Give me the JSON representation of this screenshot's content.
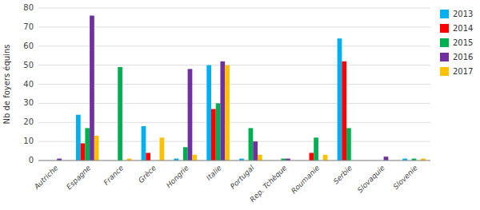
{
  "chart_data": {
    "type": "bar",
    "ylabel": "Nb de foyers équins",
    "categories": [
      "Autriche",
      "Espagne",
      "France",
      "Grèce",
      "Hongrie",
      "Italie",
      "Portugal",
      "Rep. Tchèque",
      "Roumanie",
      "Serbie",
      "Slovaquie",
      "Slovenie"
    ],
    "series": [
      {
        "name": "2013",
        "color": "#00B0F0",
        "values": [
          0,
          24,
          0,
          18,
          1,
          50,
          1,
          0,
          0,
          64,
          0,
          1
        ]
      },
      {
        "name": "2014",
        "color": "#FF0000",
        "values": [
          0,
          9,
          0,
          4,
          0,
          27,
          0,
          0,
          4,
          52,
          0,
          0
        ]
      },
      {
        "name": "2015",
        "color": "#00B050",
        "values": [
          0,
          17,
          49,
          0,
          7,
          30,
          17,
          1,
          12,
          17,
          0,
          1
        ]
      },
      {
        "name": "2016",
        "color": "#7030A0",
        "values": [
          1,
          76,
          0,
          0,
          48,
          52,
          10,
          1,
          0,
          0,
          2,
          0
        ]
      },
      {
        "name": "2017",
        "color": "#FFC000",
        "values": [
          0,
          13,
          1,
          12,
          3,
          50,
          3,
          0,
          3,
          0,
          0,
          1
        ]
      }
    ],
    "ylim": [
      0,
      80
    ],
    "yticks": [
      0,
      10,
      20,
      30,
      40,
      50,
      60,
      70,
      80
    ],
    "grid": true,
    "legend": "right"
  }
}
